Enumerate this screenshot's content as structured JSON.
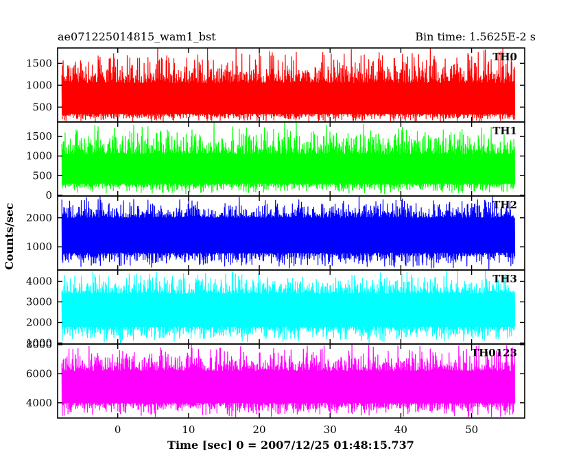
{
  "chart_data": {
    "type": "line",
    "title_left": "ae071225014815_wam1_bst",
    "title_right": "Bin time: 1.5625E-2 s",
    "xlabel": "Time [sec] 0 = 2007/12/25 01:48:15.737",
    "ylabel": "Counts/sec",
    "xlim": [
      -8.5,
      57.5
    ],
    "x_range_data": [
      -7.9,
      56.1
    ],
    "x_ticks": [
      0,
      10,
      20,
      30,
      40,
      50
    ],
    "x_tick_labels": [
      "0",
      "10",
      "20",
      "30",
      "40",
      "50"
    ],
    "panels": [
      {
        "name": "TH0",
        "color": "#ff0000",
        "ylim": [
          160,
          1850
        ],
        "y_ticks": [
          500,
          1000,
          1500
        ],
        "y_tick_labels": [
          "500",
          "1000",
          "1500"
        ],
        "typical_low": 350,
        "typical_high": 1050,
        "min": 160,
        "max": 1850
      },
      {
        "name": "TH1",
        "color": "#00ff00",
        "ylim": [
          -20,
          1870
        ],
        "y_ticks": [
          0,
          500,
          1000,
          1500
        ],
        "y_tick_labels": [
          "0",
          "500",
          "1000",
          "1500"
        ],
        "typical_low": 300,
        "typical_high": 1050,
        "min": 30,
        "max": 1850
      },
      {
        "name": "TH2",
        "color": "#0000ff",
        "ylim": [
          200,
          2750
        ],
        "y_ticks": [
          1000,
          2000
        ],
        "y_tick_labels": [
          "1000",
          "2000"
        ],
        "typical_low": 800,
        "typical_high": 2000,
        "min": 250,
        "max": 2700
      },
      {
        "name": "TH3",
        "color": "#00ffff",
        "ylim": [
          950,
          4550
        ],
        "y_ticks": [
          1000,
          2000,
          3000,
          4000
        ],
        "y_tick_labels": [
          "1000",
          "2000",
          "3000",
          "4000"
        ],
        "typical_low": 1800,
        "typical_high": 3400,
        "min": 1000,
        "max": 4500
      },
      {
        "name": "TH0123",
        "color": "#ff00ff",
        "ylim": [
          2950,
          8050
        ],
        "y_ticks": [
          4000,
          6000,
          8000
        ],
        "y_tick_labels": [
          "4000",
          "6000",
          "8000"
        ],
        "typical_low": 4000,
        "typical_high": 6200,
        "min": 3050,
        "max": 8000
      }
    ]
  }
}
